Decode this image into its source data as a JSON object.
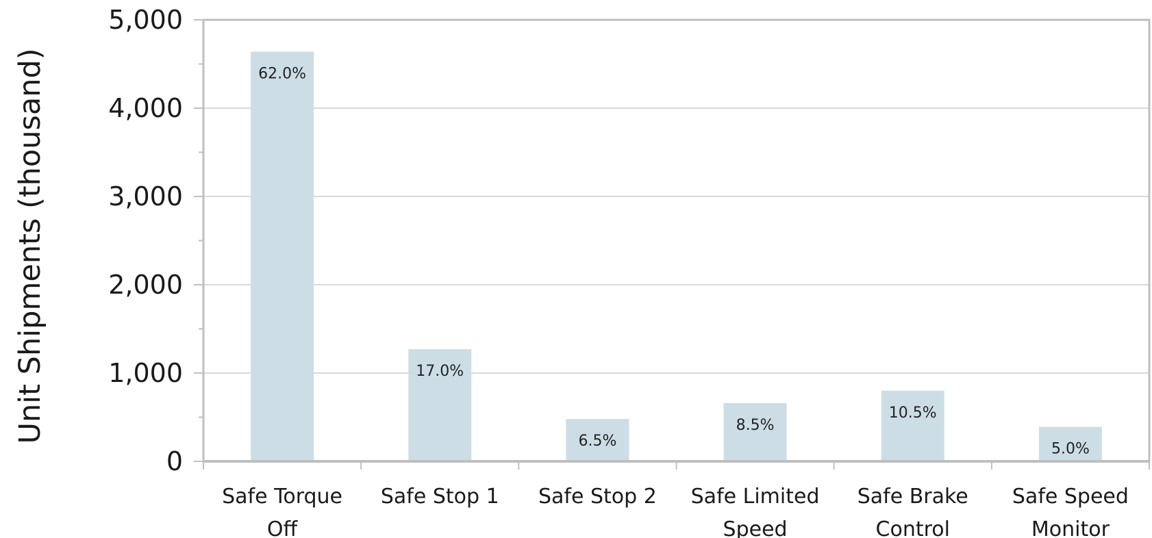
{
  "chart_data": {
    "type": "bar",
    "ylabel": "Unit Shipments (thousand)",
    "xlabel": "",
    "ylim": [
      0,
      5000
    ],
    "grid": true,
    "y_ticks": [
      "0",
      "1,000",
      "2,000",
      "3,000",
      "4,000",
      "5,000"
    ],
    "categories": [
      [
        "Safe Torque",
        "Off"
      ],
      [
        "Safe Stop 1"
      ],
      [
        "Safe Stop 2"
      ],
      [
        "Safe Limited",
        "Speed"
      ],
      [
        "Safe Brake",
        "Control"
      ],
      [
        "Safe Speed",
        "Monitor"
      ]
    ],
    "values": [
      4640,
      1270,
      480,
      660,
      800,
      390
    ],
    "data_labels": [
      "62.0%",
      "17.0%",
      "6.5%",
      "8.5%",
      "10.5%",
      "5.0%"
    ],
    "colors": {
      "bar": "#cddde6",
      "grid": "#d9d9d9",
      "frame": "#bfbfbf",
      "axis": "#bfbfbf"
    }
  }
}
